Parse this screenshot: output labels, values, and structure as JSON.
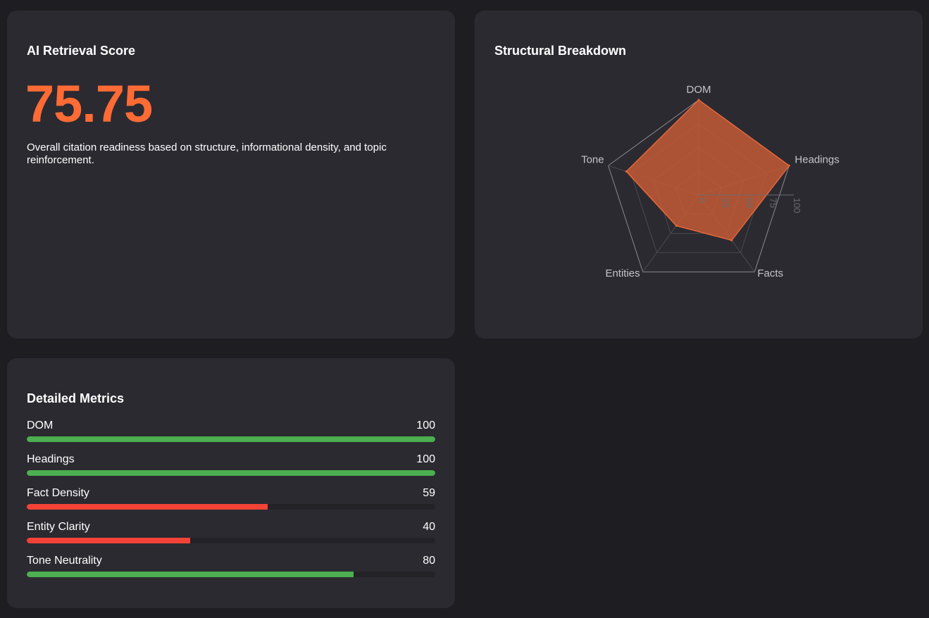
{
  "score_card": {
    "title": "AI Retrieval Score",
    "score": "75.75",
    "description": "Overall citation readiness based on structure, informational density, and topic reinforcement."
  },
  "radar_card": {
    "title": "Structural Breakdown"
  },
  "metrics_card": {
    "title": "Detailed Metrics",
    "metrics": [
      {
        "label": "DOM",
        "value": "100",
        "fraction": 1.0,
        "status": "good"
      },
      {
        "label": "Headings",
        "value": "100",
        "fraction": 1.0,
        "status": "good"
      },
      {
        "label": "Fact Density",
        "value": "59",
        "fraction": 0.59,
        "status": "bad"
      },
      {
        "label": "Entity Clarity",
        "value": "40",
        "fraction": 0.4,
        "status": "bad"
      },
      {
        "label": "Tone Neutrality",
        "value": "80",
        "fraction": 0.8,
        "status": "good"
      }
    ]
  },
  "colors": {
    "accent": "#ff6b35",
    "good": "#4caf50",
    "bad": "#f44336",
    "radar_fill": "#c25a35",
    "radar_stroke": "#e8663a"
  },
  "chart_data": {
    "type": "radar",
    "categories": [
      "DOM",
      "Headings",
      "Facts",
      "Entities",
      "Tone"
    ],
    "values": [
      100,
      100,
      59,
      40,
      80
    ],
    "ticks": [
      "0",
      "25",
      "50",
      "75",
      "100"
    ],
    "range": [
      0,
      100
    ]
  }
}
